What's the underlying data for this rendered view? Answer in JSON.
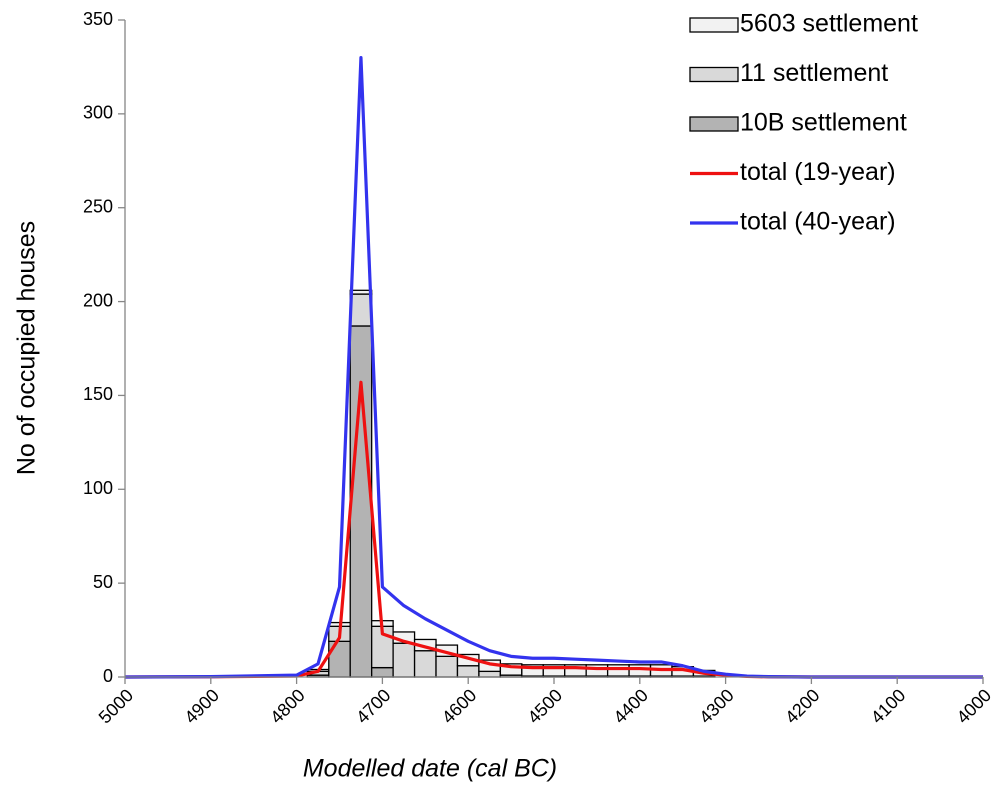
{
  "chart_data": [
    {
      "type": "histogram",
      "x_label": "Modelled date (cal BC)",
      "y_label": "No of occupied houses",
      "bins": [
        4787.5,
        4762.5,
        4737.5,
        4712.5,
        4687.5,
        4662.5,
        4637.5,
        4612.5,
        4587.5,
        4562.5,
        4537.5,
        4512.5,
        4487.5,
        4462.5,
        4437.5,
        4412.5,
        4387.5,
        4362.5,
        4337.5,
        4312.5
      ],
      "series": [
        {
          "name": "5603 settlement",
          "color": "#f2f2f2",
          "values": [
            1,
            2,
            2,
            3,
            6,
            6,
            6,
            6,
            6,
            6,
            6,
            6,
            6,
            6,
            6,
            6,
            6,
            5,
            3
          ]
        },
        {
          "name": "11 settlement",
          "color": "#d9d9d9",
          "values": [
            2,
            8,
            17,
            22,
            18,
            14,
            11,
            6,
            3,
            1,
            0.5,
            0.5,
            0.5,
            0.5,
            0.5,
            0.5,
            0.5,
            0.5,
            0.5
          ]
        },
        {
          "name": "10B settlement",
          "color": "#b3b3b3",
          "values": [
            1,
            19,
            187,
            5,
            0,
            0,
            0,
            0,
            0,
            0,
            0,
            0,
            0,
            0,
            0,
            0,
            0,
            0,
            0
          ]
        }
      ],
      "xlim": [
        5000,
        4000
      ],
      "xticks": [
        5000,
        4900,
        4800,
        4700,
        4600,
        4500,
        4400,
        4300,
        4200,
        4100,
        4000
      ],
      "ylim": [
        0,
        350
      ],
      "yticks": [
        0,
        50,
        100,
        150,
        200,
        250,
        300,
        350
      ],
      "grid": false,
      "legend": "upper right"
    },
    {
      "type": "line",
      "x": [
        5000,
        4900,
        4800,
        4775,
        4750,
        4725,
        4700,
        4675,
        4650,
        4625,
        4600,
        4575,
        4550,
        4525,
        4500,
        4475,
        4450,
        4425,
        4400,
        4375,
        4350,
        4325,
        4300,
        4275,
        4250,
        4200,
        4100,
        4000
      ],
      "series": [
        {
          "name": "total (19-year)",
          "color": "#ee1111",
          "values": [
            0,
            0.1,
            0.5,
            3,
            21,
            157,
            23,
            19,
            16,
            13,
            10,
            7,
            5.5,
            5,
            5,
            5,
            4.5,
            4.5,
            4.5,
            4,
            4,
            2,
            1,
            0.3,
            0.1,
            0,
            0,
            0
          ]
        },
        {
          "name": "total (40-year)",
          "color": "#3333ee",
          "values": [
            0,
            0.2,
            1,
            7,
            48,
            330,
            48,
            38,
            31,
            25,
            19,
            14,
            11,
            10,
            10,
            9.5,
            9,
            8.5,
            8,
            8,
            6,
            3,
            1.5,
            0.5,
            0.2,
            0,
            0,
            0
          ]
        }
      ]
    }
  ]
}
